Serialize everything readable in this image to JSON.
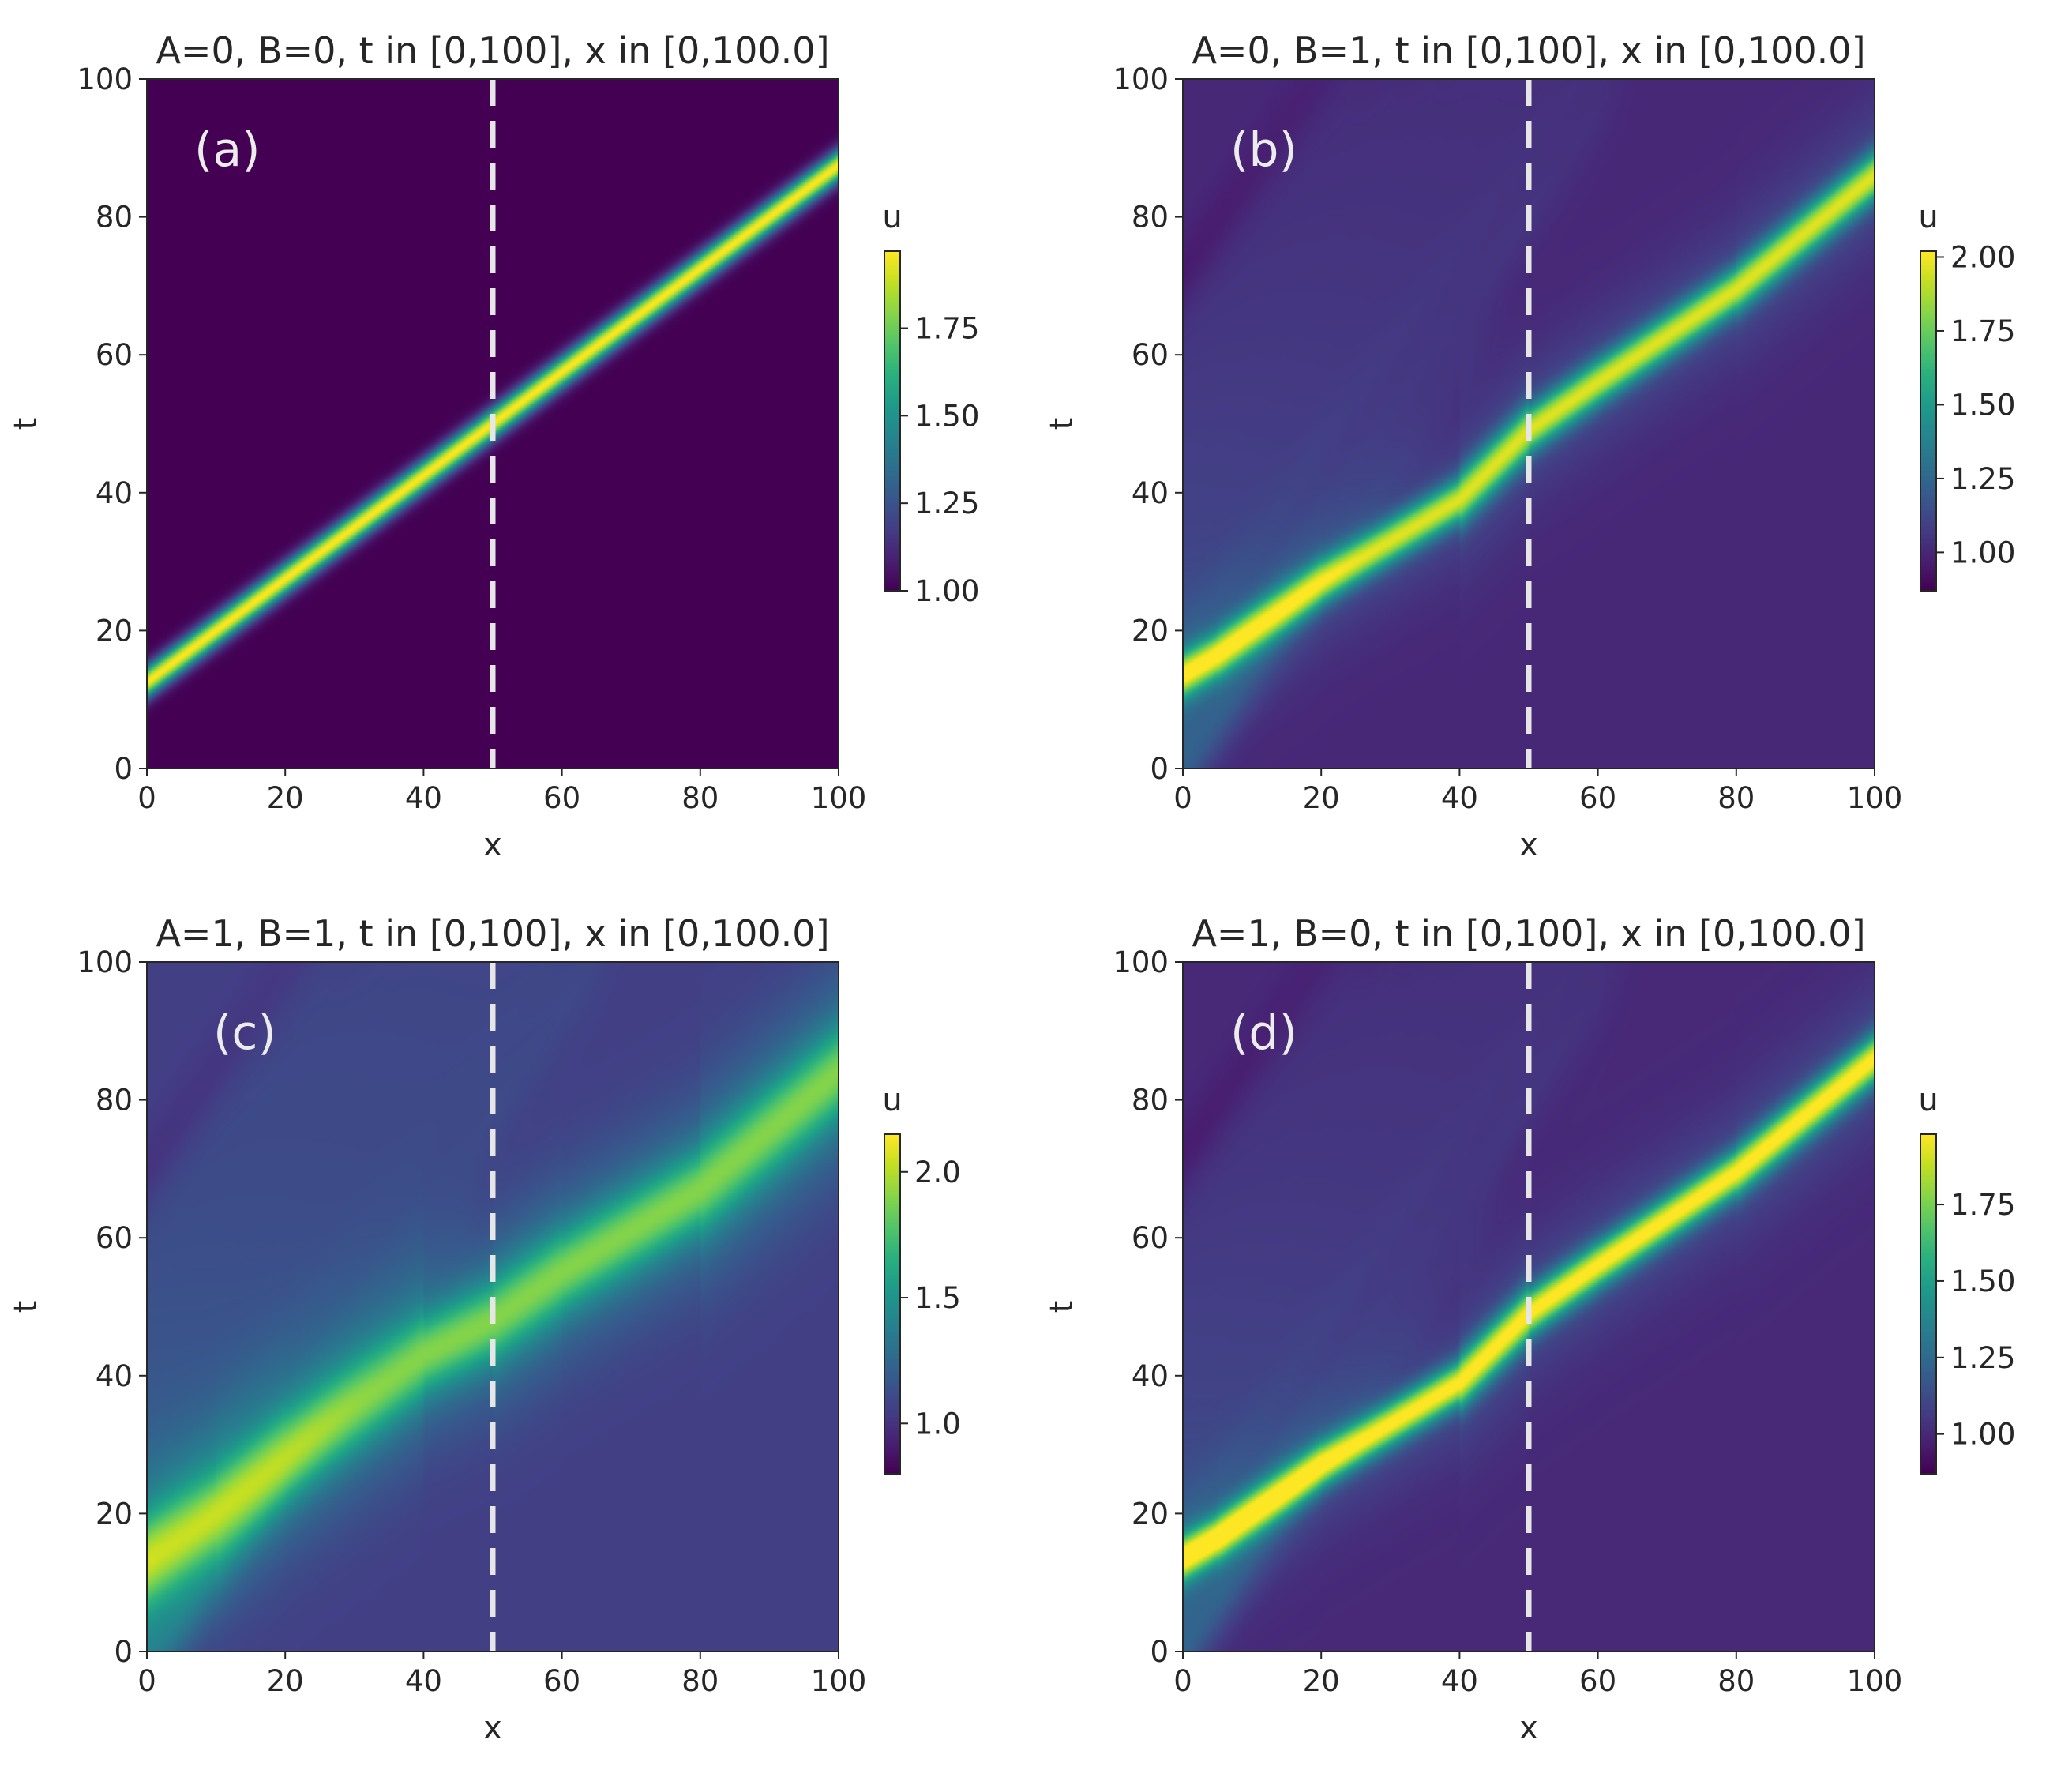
{
  "chart_data": [
    {
      "type": "heatmap",
      "label": "(a)",
      "title": "A=0, B=0, t in [0,100], x in [0,100.0]",
      "xlabel": "x",
      "ylabel": "t",
      "xlim": [
        0,
        100
      ],
      "ylim": [
        0,
        100
      ],
      "xticks": [
        "0",
        "20",
        "40",
        "60",
        "80",
        "100"
      ],
      "yticks": [
        "0",
        "20",
        "40",
        "60",
        "80",
        "100"
      ],
      "dashed_line_x": 50,
      "colorbar": {
        "label": "u",
        "min": 1.0,
        "max": 1.97,
        "ticks": [
          "1.00",
          "1.25",
          "1.50",
          "1.75"
        ],
        "tick_values": [
          1.0,
          1.25,
          1.5,
          1.75
        ]
      },
      "background_u": 1.0,
      "soliton": {
        "points": [
          [
            0,
            12.5
          ],
          [
            100,
            87.5
          ]
        ],
        "peak_u": 1.97,
        "width_x": 1.3,
        "halo_peak": 0,
        "halo_width": 1
      },
      "ripples": []
    },
    {
      "type": "heatmap",
      "label": "(b)",
      "title": "A=0, B=1, t in [0,100], x in [0,100.0]",
      "xlabel": "x",
      "ylabel": "t",
      "xlim": [
        0,
        100
      ],
      "ylim": [
        0,
        100
      ],
      "xticks": [
        "0",
        "20",
        "40",
        "60",
        "80",
        "100"
      ],
      "yticks": [
        "0",
        "20",
        "40",
        "60",
        "80",
        "100"
      ],
      "dashed_line_x": 50,
      "colorbar": {
        "label": "u",
        "min": 0.87,
        "max": 2.02,
        "ticks": [
          "1.00",
          "1.25",
          "1.50",
          "1.75",
          "2.00"
        ],
        "tick_values": [
          1.0,
          1.25,
          1.5,
          1.75,
          2.0
        ]
      },
      "background_u": 1.0,
      "soliton": {
        "points": [
          [
            0,
            13.5
          ],
          [
            5,
            16.5
          ],
          [
            20,
            27
          ],
          [
            40,
            39
          ],
          [
            50,
            49
          ],
          [
            60,
            56
          ],
          [
            80,
            69.5
          ],
          [
            100,
            86
          ]
        ],
        "peak_u": 1.85,
        "width_x": 1.9,
        "halo_peak": 0.12,
        "halo_width": 6
      },
      "ripples": [
        {
          "intercept": 0,
          "slope": 1.45,
          "amp": 0.22,
          "length": 42,
          "width": 2.4,
          "decay": 0.045
        },
        {
          "intercept": 8,
          "slope": 1.45,
          "amp": 0.26,
          "length": 60,
          "width": 2.4,
          "decay": 0.035
        },
        {
          "intercept": 16,
          "slope": 1.45,
          "amp": 0.24,
          "length": 70,
          "width": 2.4,
          "decay": 0.03
        },
        {
          "intercept": 23,
          "slope": 1.45,
          "amp": 0.22,
          "length": 68,
          "width": 2.4,
          "decay": 0.03
        },
        {
          "intercept": 30,
          "slope": 1.45,
          "amp": 0.2,
          "length": 60,
          "width": 2.4,
          "decay": 0.03
        },
        {
          "intercept": 37,
          "slope": 1.45,
          "amp": 0.18,
          "length": 52,
          "width": 2.4,
          "decay": 0.03
        },
        {
          "intercept": 44,
          "slope": 1.45,
          "amp": 0.16,
          "length": 44,
          "width": 2.4,
          "decay": 0.03
        },
        {
          "intercept": 51,
          "slope": 1.45,
          "amp": 0.14,
          "length": 36,
          "width": 2.4,
          "decay": 0.03
        },
        {
          "intercept": 58,
          "slope": 1.45,
          "amp": 0.12,
          "length": 30,
          "width": 2.4,
          "decay": 0.03
        },
        {
          "intercept": 65,
          "slope": 1.45,
          "amp": 0.1,
          "length": 24,
          "width": 2.4,
          "decay": 0.03
        }
      ]
    },
    {
      "type": "heatmap",
      "label": "(c)",
      "title": "A=1, B=1, t in [0,100], x in [0,100.0]",
      "xlabel": "x",
      "ylabel": "t",
      "xlim": [
        0,
        100
      ],
      "ylim": [
        0,
        100
      ],
      "xticks": [
        "0",
        "20",
        "40",
        "60",
        "80",
        "100"
      ],
      "yticks": [
        "0",
        "20",
        "40",
        "60",
        "80",
        "100"
      ],
      "dashed_line_x": 50,
      "colorbar": {
        "label": "u",
        "min": 0.8,
        "max": 2.15,
        "ticks": [
          "1.0",
          "1.5",
          "2.0"
        ],
        "tick_values": [
          1.0,
          1.5,
          2.0
        ]
      },
      "background_u": 1.05,
      "soliton": {
        "points": [
          [
            0,
            13
          ],
          [
            10,
            20
          ],
          [
            20,
            28
          ],
          [
            40,
            43
          ],
          [
            50,
            48
          ],
          [
            60,
            55
          ],
          [
            80,
            67
          ],
          [
            100,
            84
          ]
        ],
        "peak_u": 1.6,
        "width_x": 3.5,
        "halo_peak": 0.3,
        "halo_width": 8
      },
      "ripples": [
        {
          "intercept": -2,
          "slope": 1.45,
          "amp": 0.25,
          "length": 46,
          "width": 2.6,
          "decay": 0.04
        },
        {
          "intercept": 6,
          "slope": 1.45,
          "amp": 0.28,
          "length": 64,
          "width": 2.6,
          "decay": 0.03
        },
        {
          "intercept": 14,
          "slope": 1.45,
          "amp": 0.26,
          "length": 74,
          "width": 2.6,
          "decay": 0.028
        },
        {
          "intercept": 21,
          "slope": 1.45,
          "amp": 0.24,
          "length": 72,
          "width": 2.6,
          "decay": 0.028
        },
        {
          "intercept": 28,
          "slope": 1.45,
          "amp": 0.22,
          "length": 66,
          "width": 2.6,
          "decay": 0.028
        },
        {
          "intercept": 35,
          "slope": 1.45,
          "amp": 0.2,
          "length": 58,
          "width": 2.6,
          "decay": 0.028
        },
        {
          "intercept": 42,
          "slope": 1.45,
          "amp": 0.18,
          "length": 50,
          "width": 2.6,
          "decay": 0.028
        },
        {
          "intercept": 49,
          "slope": 1.45,
          "amp": 0.16,
          "length": 42,
          "width": 2.6,
          "decay": 0.028
        },
        {
          "intercept": 56,
          "slope": 1.45,
          "amp": 0.14,
          "length": 34,
          "width": 2.6,
          "decay": 0.028
        },
        {
          "intercept": 63,
          "slope": 1.45,
          "amp": 0.12,
          "length": 26,
          "width": 2.6,
          "decay": 0.028
        }
      ]
    },
    {
      "type": "heatmap",
      "label": "(d)",
      "title": "A=1, B=0, t in [0,100], x in [0,100.0]",
      "xlabel": "x",
      "ylabel": "t",
      "xlim": [
        0,
        100
      ],
      "ylim": [
        0,
        100
      ],
      "xticks": [
        "0",
        "20",
        "40",
        "60",
        "80",
        "100"
      ],
      "yticks": [
        "0",
        "20",
        "40",
        "60",
        "80",
        "100"
      ],
      "dashed_line_x": 50,
      "colorbar": {
        "label": "u",
        "min": 0.87,
        "max": 1.98,
        "ticks": [
          "1.00",
          "1.25",
          "1.50",
          "1.75"
        ],
        "tick_values": [
          1.0,
          1.25,
          1.5,
          1.75
        ]
      },
      "background_u": 1.0,
      "soliton": {
        "points": [
          [
            0,
            13.5
          ],
          [
            5,
            16.5
          ],
          [
            20,
            27
          ],
          [
            40,
            39
          ],
          [
            50,
            49
          ],
          [
            60,
            56
          ],
          [
            80,
            69.5
          ],
          [
            100,
            86
          ]
        ],
        "peak_u": 1.9,
        "width_x": 1.9,
        "halo_peak": 0.12,
        "halo_width": 6
      },
      "ripples": [
        {
          "intercept": 0,
          "slope": 1.45,
          "amp": 0.22,
          "length": 42,
          "width": 2.4,
          "decay": 0.045
        },
        {
          "intercept": 8,
          "slope": 1.45,
          "amp": 0.26,
          "length": 60,
          "width": 2.4,
          "decay": 0.035
        },
        {
          "intercept": 16,
          "slope": 1.45,
          "amp": 0.24,
          "length": 70,
          "width": 2.4,
          "decay": 0.03
        },
        {
          "intercept": 23,
          "slope": 1.45,
          "amp": 0.22,
          "length": 68,
          "width": 2.4,
          "decay": 0.03
        },
        {
          "intercept": 30,
          "slope": 1.45,
          "amp": 0.2,
          "length": 60,
          "width": 2.4,
          "decay": 0.03
        },
        {
          "intercept": 37,
          "slope": 1.45,
          "amp": 0.18,
          "length": 52,
          "width": 2.4,
          "decay": 0.03
        },
        {
          "intercept": 44,
          "slope": 1.45,
          "amp": 0.16,
          "length": 44,
          "width": 2.4,
          "decay": 0.03
        },
        {
          "intercept": 51,
          "slope": 1.45,
          "amp": 0.14,
          "length": 36,
          "width": 2.4,
          "decay": 0.03
        },
        {
          "intercept": 58,
          "slope": 1.45,
          "amp": 0.12,
          "length": 30,
          "width": 2.4,
          "decay": 0.03
        },
        {
          "intercept": 65,
          "slope": 1.45,
          "amp": 0.1,
          "length": 24,
          "width": 2.4,
          "decay": 0.03
        }
      ]
    }
  ]
}
